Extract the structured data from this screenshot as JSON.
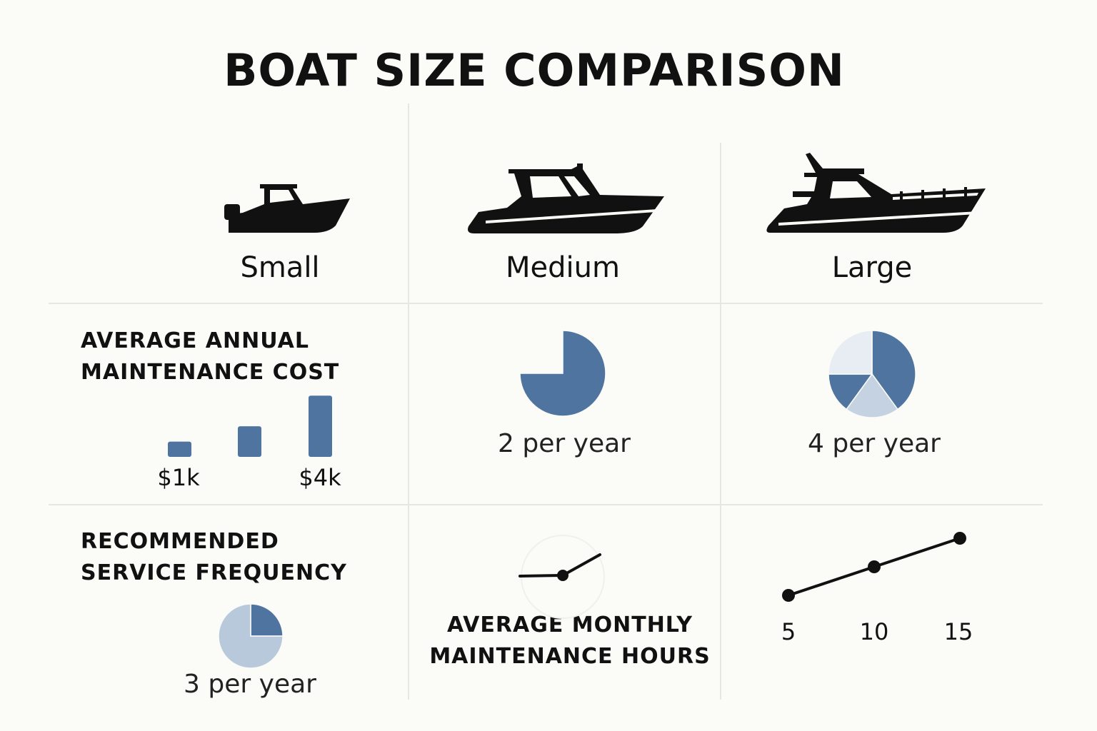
{
  "title": "BOAT SIZE COMPARISON",
  "boats": [
    {
      "label": "Small",
      "icon": "small-boat-icon"
    },
    {
      "label": "Medium",
      "icon": "medium-boat-icon"
    },
    {
      "label": "Large",
      "icon": "large-boat-icon"
    }
  ],
  "sections": {
    "annual_cost": {
      "heading_line1": "AVERAGE ANNUAL",
      "heading_line2": "MAINTENANCE COST"
    },
    "service_frequency": {
      "heading_line1": "RECOMMENDED",
      "heading_line2": "SERVICE FREQUENCY"
    },
    "monthly_hours": {
      "heading_line1": "AVERAGE MONTHLY",
      "heading_line2": "MAINTENANCE HOURS"
    }
  },
  "colors": {
    "primary": "#4f74a0",
    "light": "#c5d2e1",
    "pale": "#e8edf3",
    "ink": "#111111",
    "divider": "#e6e6e2"
  },
  "chart_data": [
    {
      "type": "bar",
      "id": "annual-cost-bars",
      "categories": [
        "Small",
        "Medium",
        "Large"
      ],
      "values": [
        1,
        2,
        4
      ],
      "unit": "$k",
      "tick_labels": [
        "$1k",
        "",
        "$4k"
      ],
      "ylim": [
        0,
        4.2
      ]
    },
    {
      "type": "pie",
      "id": "small-service-pie",
      "slices": [
        {
          "value": 25,
          "color": "#4f74a0"
        },
        {
          "value": 75,
          "color": "#b9c9dc"
        }
      ],
      "caption": "3 per year"
    },
    {
      "type": "pie",
      "id": "medium-service-pie",
      "slices": [
        {
          "value": 75,
          "color": "#4f74a0"
        }
      ],
      "caption": "2 per year"
    },
    {
      "type": "pie",
      "id": "large-service-pie",
      "slices": [
        {
          "value": 40,
          "color": "#4f74a0"
        },
        {
          "value": 20,
          "color": "#c5d2e1"
        },
        {
          "value": 15,
          "color": "#4f74a0"
        },
        {
          "value": 25,
          "color": "#e8edf3"
        }
      ],
      "caption": "4 per year"
    },
    {
      "type": "line",
      "id": "monthly-hours-line",
      "x": [
        5,
        10,
        15
      ],
      "y": [
        5,
        10,
        15
      ],
      "tick_labels": [
        "5",
        "10",
        "15"
      ]
    }
  ]
}
